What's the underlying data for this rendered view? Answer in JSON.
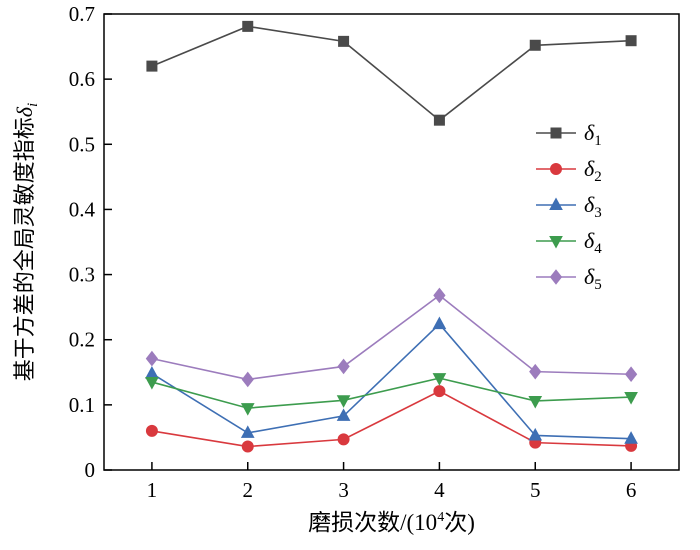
{
  "figure": {
    "background": "#ffffff",
    "axis_color": "#000000"
  },
  "chart_data": {
    "type": "line",
    "title": "",
    "xlabel": {
      "pre": "磨损次数/(10",
      "sup": "4",
      "post": "次)"
    },
    "ylabel": {
      "text": "基于方差的全局灵敏度指标",
      "sym": "δ",
      "sub": "i"
    },
    "xlim": [
      0.5,
      6.5
    ],
    "ylim": [
      0,
      0.7
    ],
    "xticks": [
      1,
      2,
      3,
      4,
      5,
      6
    ],
    "xtick_labels": [
      "1",
      "2",
      "3",
      "4",
      "5",
      "6"
    ],
    "yticks": [
      0,
      0.1,
      0.2,
      0.3,
      0.4,
      0.5,
      0.6,
      0.7
    ],
    "ytick_labels": [
      "0",
      "0.1",
      "0.2",
      "0.3",
      "0.4",
      "0.5",
      "0.6",
      "0.7"
    ],
    "grid": false,
    "legend_position": "upper-right-inside",
    "x": [
      1,
      2,
      3,
      4,
      5,
      6
    ],
    "series": [
      {
        "name": "delta1",
        "label_sym": "δ",
        "label_sub": "1",
        "color": "#4a4a4a",
        "marker": "square",
        "values": [
          0.62,
          0.681,
          0.658,
          0.537,
          0.652,
          0.659
        ]
      },
      {
        "name": "delta2",
        "label_sym": "δ",
        "label_sub": "2",
        "color": "#d9393e",
        "marker": "circle",
        "values": [
          0.06,
          0.036,
          0.047,
          0.121,
          0.042,
          0.037
        ]
      },
      {
        "name": "delta3",
        "label_sym": "δ",
        "label_sub": "3",
        "color": "#3e6fb4",
        "marker": "triangle-up",
        "values": [
          0.148,
          0.057,
          0.083,
          0.224,
          0.053,
          0.048
        ]
      },
      {
        "name": "delta4",
        "label_sym": "δ",
        "label_sub": "4",
        "color": "#3d9c4e",
        "marker": "triangle-down",
        "values": [
          0.135,
          0.095,
          0.107,
          0.141,
          0.106,
          0.112
        ]
      },
      {
        "name": "delta5",
        "label_sym": "δ",
        "label_sub": "5",
        "color": "#9c7cbd",
        "marker": "diamond",
        "values": [
          0.171,
          0.139,
          0.159,
          0.268,
          0.151,
          0.147
        ]
      }
    ]
  }
}
